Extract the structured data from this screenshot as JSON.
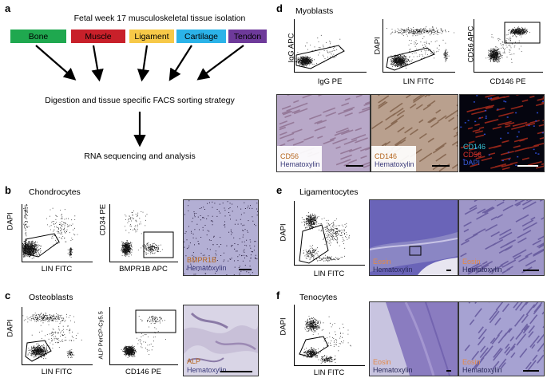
{
  "panels": {
    "a": "a",
    "b": "b",
    "c": "c",
    "d": "d",
    "e": "e",
    "f": "f"
  },
  "a": {
    "title": "Fetal week 17 musculoskeletal tissue isolation",
    "tissues": [
      {
        "label": "Bone",
        "color": "#1fa84f"
      },
      {
        "label": "Muscle",
        "color": "#c8202a"
      },
      {
        "label": "Ligament",
        "color": "#f7c948"
      },
      {
        "label": "Cartilage",
        "color": "#2bb3e8"
      },
      {
        "label": "Tendon",
        "color": "#6e3a9a"
      }
    ],
    "step1": "Digestion and tissue specific FACS sorting strategy",
    "step2": "RNA sequencing and analysis"
  },
  "b": {
    "title": "Chondrocytes",
    "plot1": {
      "ylabel": "DAPI",
      "xlabel": "LIN FITC"
    },
    "plot2": {
      "ylabel": "CD34 PE",
      "xlabel": "BMPR1B APC"
    },
    "stain1": "BMPR1B",
    "stain2": "Hematoxylin"
  },
  "c": {
    "title": "Osteoblasts",
    "plot1": {
      "ylabel": "DAPI",
      "xlabel": "LIN FITC"
    },
    "plot2": {
      "ylabel": "ALP PerCP-Cy5.5",
      "xlabel": "CD146 PE"
    },
    "stain1": "ALP",
    "stain2": "Hematoxylin"
  },
  "d": {
    "title": "Myoblasts",
    "plot1": {
      "ylabel": "IgG APC",
      "xlabel": "IgG PE"
    },
    "plot2": {
      "ylabel": "DAPI",
      "xlabel": "LIN FITC"
    },
    "plot3": {
      "ylabel": "CD56 APC",
      "xlabel": "CD146 PE"
    },
    "img1": [
      "CD56",
      "Hematoxylin"
    ],
    "img2": [
      "CD146",
      "Hematoxylin"
    ],
    "img3": [
      "CD146",
      "CD56",
      "DAPI"
    ]
  },
  "e": {
    "title": "Ligamentocytes",
    "plot1": {
      "ylabel": "DAPI",
      "xlabel": "LIN FITC"
    },
    "img1": [
      "Eosin",
      "Hematoxylin"
    ],
    "img2": [
      "Eosin",
      "Hematoxylin"
    ]
  },
  "f": {
    "title": "Tenocytes",
    "plot1": {
      "ylabel": "DAPI",
      "xlabel": "LIN FITC"
    },
    "img1": [
      "Eosin",
      "Hematoxylin"
    ],
    "img2": [
      "Eosin",
      "Hematoxylin"
    ]
  },
  "colors": {
    "brown": "#b5651d",
    "navy": "#3a3a7a",
    "cyan": "#39c6d8",
    "red": "#e0342e",
    "blue": "#3a5ad8"
  }
}
